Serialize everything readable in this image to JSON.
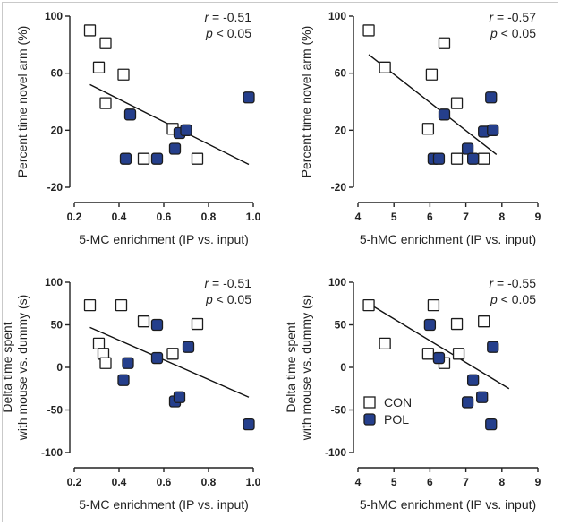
{
  "colors": {
    "con_fill": "#ffffff",
    "pol_fill": "#253f8c",
    "marker_stroke": "#1c1c1c",
    "axis": "#222222"
  },
  "legend": {
    "con": "CON",
    "pol": "POL"
  },
  "chart_data": [
    {
      "type": "scatter",
      "xlabel": "5-MC enrichment (IP vs. input)",
      "ylabel": [
        "Percent time novel arm (%)"
      ],
      "xticks": [
        "0.2",
        "0.4",
        "0.6",
        "0.8",
        "1.0"
      ],
      "yticks": [
        "100",
        "60",
        "20",
        "-20"
      ],
      "xlim": [
        0.2,
        1.0
      ],
      "ylim": [
        -20,
        100
      ],
      "stats": {
        "r": "= -0.51",
        "p": "< 0.05"
      },
      "series": [
        {
          "name": "CON",
          "points": [
            [
              0.27,
              90
            ],
            [
              0.31,
              64
            ],
            [
              0.34,
              81
            ],
            [
              0.34,
              39
            ],
            [
              0.42,
              59
            ],
            [
              0.51,
              0
            ],
            [
              0.64,
              21
            ],
            [
              0.75,
              0
            ]
          ]
        },
        {
          "name": "POL",
          "points": [
            [
              0.43,
              0
            ],
            [
              0.45,
              31
            ],
            [
              0.57,
              0
            ],
            [
              0.65,
              7
            ],
            [
              0.67,
              18
            ],
            [
              0.7,
              20
            ],
            [
              0.98,
              43
            ]
          ]
        }
      ],
      "fit": [
        [
          0.27,
          52
        ],
        [
          0.98,
          -4
        ]
      ]
    },
    {
      "type": "scatter",
      "xlabel": "5-hMC enrichment (IP vs. input)",
      "ylabel": [
        "Percent time novel arm (%)"
      ],
      "xticks": [
        "4",
        "5",
        "6",
        "7",
        "8",
        "9"
      ],
      "yticks": [
        "100",
        "60",
        "20",
        "-20"
      ],
      "xlim": [
        4,
        9
      ],
      "ylim": [
        -20,
        100
      ],
      "stats": {
        "r": "= -0.57",
        "p": "< 0.05"
      },
      "series": [
        {
          "name": "CON",
          "points": [
            [
              4.3,
              90
            ],
            [
              4.75,
              64
            ],
            [
              5.95,
              21
            ],
            [
              6.05,
              59
            ],
            [
              6.4,
              81
            ],
            [
              6.75,
              39
            ],
            [
              6.75,
              0
            ],
            [
              7.5,
              0
            ]
          ]
        },
        {
          "name": "POL",
          "points": [
            [
              6.1,
              0
            ],
            [
              6.25,
              0
            ],
            [
              6.4,
              31
            ],
            [
              7.05,
              7
            ],
            [
              7.2,
              0
            ],
            [
              7.5,
              19
            ],
            [
              7.7,
              43
            ],
            [
              7.75,
              20
            ]
          ]
        }
      ],
      "fit": [
        [
          4.3,
          73
        ],
        [
          7.85,
          3
        ]
      ]
    },
    {
      "type": "scatter",
      "xlabel": "5-MC enrichment (IP vs. input)",
      "ylabel": [
        "Delta time spent",
        "with mouse vs. dummy (s)"
      ],
      "xticks": [
        "0.2",
        "0.4",
        "0.6",
        "0.8",
        "1.0"
      ],
      "yticks": [
        "100",
        "50",
        "0",
        "-50",
        "-100"
      ],
      "xlim": [
        0.2,
        1.0
      ],
      "ylim": [
        -100,
        100
      ],
      "stats": {
        "r": "= -0.51",
        "p": "< 0.05"
      },
      "series": [
        {
          "name": "CON",
          "points": [
            [
              0.27,
              73
            ],
            [
              0.31,
              28
            ],
            [
              0.33,
              16
            ],
            [
              0.34,
              5
            ],
            [
              0.41,
              73
            ],
            [
              0.51,
              54
            ],
            [
              0.64,
              16
            ],
            [
              0.75,
              51
            ]
          ]
        },
        {
          "name": "POL",
          "points": [
            [
              0.42,
              -15
            ],
            [
              0.44,
              5
            ],
            [
              0.57,
              11
            ],
            [
              0.57,
              50
            ],
            [
              0.65,
              -40
            ],
            [
              0.67,
              -35
            ],
            [
              0.71,
              24
            ],
            [
              0.98,
              -67
            ]
          ]
        }
      ],
      "fit": [
        [
          0.27,
          47
        ],
        [
          0.98,
          -35
        ]
      ]
    },
    {
      "type": "scatter",
      "xlabel": "5-hMC enrichment (IP vs. input)",
      "ylabel": [
        "Delta time spent",
        "with mouse vs. dummy (s)"
      ],
      "xticks": [
        "4",
        "5",
        "6",
        "7",
        "8",
        "9"
      ],
      "yticks": [
        "100",
        "50",
        "0",
        "-50",
        "-100"
      ],
      "xlim": [
        4,
        9
      ],
      "ylim": [
        -100,
        100
      ],
      "stats": {
        "r": "= -0.55",
        "p": "< 0.05"
      },
      "legend_position": "bottom-left",
      "series": [
        {
          "name": "CON",
          "points": [
            [
              4.3,
              73
            ],
            [
              4.75,
              28
            ],
            [
              5.95,
              16
            ],
            [
              6.1,
              73
            ],
            [
              6.4,
              5
            ],
            [
              6.75,
              51
            ],
            [
              6.8,
              16
            ],
            [
              7.5,
              54
            ]
          ]
        },
        {
          "name": "POL",
          "points": [
            [
              6.0,
              50
            ],
            [
              6.25,
              11
            ],
            [
              7.05,
              -41
            ],
            [
              7.2,
              -15
            ],
            [
              7.45,
              -35
            ],
            [
              7.7,
              -67
            ],
            [
              7.75,
              24
            ]
          ]
        }
      ],
      "fit": [
        [
          4.3,
          75
        ],
        [
          8.2,
          -25
        ]
      ]
    }
  ]
}
